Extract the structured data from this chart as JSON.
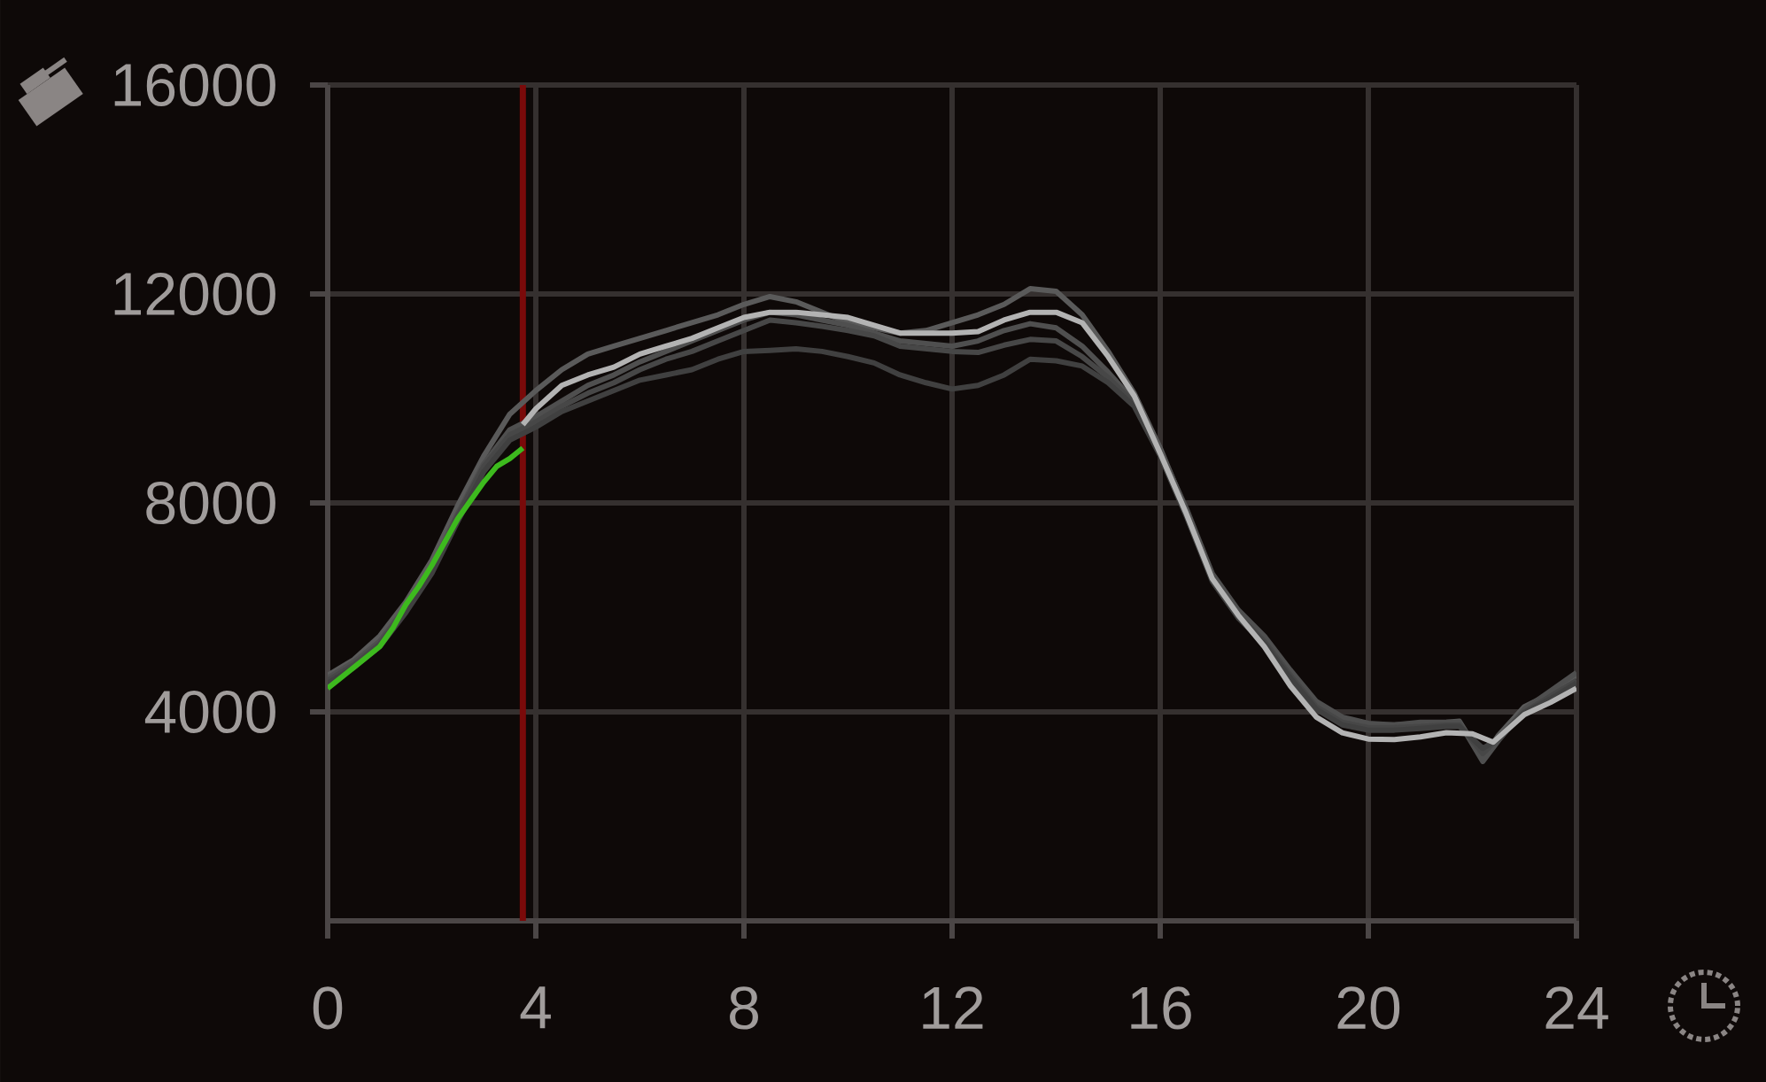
{
  "chart_data": {
    "type": "line",
    "x": [
      0,
      0.5,
      1,
      1.5,
      2,
      2.5,
      3,
      3.5,
      4,
      4.5,
      5,
      5.5,
      6,
      6.5,
      7,
      7.5,
      8,
      8.5,
      9,
      9.5,
      10,
      10.5,
      11,
      11.5,
      12,
      12.5,
      13,
      13.5,
      14,
      14.5,
      15,
      15.5,
      16,
      16.5,
      17,
      17.5,
      18,
      18.5,
      19,
      19.5,
      20,
      20.5,
      21,
      21.5,
      21.75,
      22.2,
      22.5,
      23,
      23.5,
      24
    ],
    "xlim": [
      0,
      24
    ],
    "xticks": [
      0,
      4,
      8,
      12,
      16,
      20,
      24
    ],
    "ylim": [
      0,
      16000
    ],
    "yticks": [
      4000,
      8000,
      12000,
      16000
    ],
    "grid": true,
    "series": [
      {
        "color": "#5a5a5a",
        "values": [
          4700,
          5000,
          5450,
          6100,
          6900,
          7950,
          8900,
          9700,
          10150,
          10550,
          10850,
          11000,
          11150,
          11300,
          11450,
          11600,
          11800,
          11950,
          11850,
          11650,
          11450,
          11350,
          11250,
          11300,
          11450,
          11600,
          11800,
          12100,
          12050,
          11600,
          10900,
          10100,
          9050,
          7850,
          6600,
          5900,
          5400,
          4750,
          4150,
          3850,
          3750,
          3750,
          3780,
          3800,
          3820,
          3100,
          3550,
          4100,
          4350,
          4700
        ]
      },
      {
        "color": "#4f4f4f",
        "values": [
          4650,
          4950,
          5350,
          6000,
          6750,
          7800,
          8750,
          9400,
          9650,
          9950,
          10250,
          10450,
          10700,
          10900,
          11100,
          11300,
          11500,
          11650,
          11600,
          11500,
          11400,
          11250,
          11100,
          11050,
          11000,
          11100,
          11300,
          11430,
          11350,
          11000,
          10500,
          9950,
          9000,
          7900,
          6650,
          5950,
          5450,
          4800,
          4200,
          3900,
          3780,
          3750,
          3800,
          3800,
          3800,
          3050,
          3450,
          4050,
          4400,
          4750
        ]
      },
      {
        "color": "#474747",
        "values": [
          4600,
          4900,
          5300,
          5950,
          6700,
          7750,
          8700,
          9300,
          9550,
          9850,
          10100,
          10300,
          10550,
          10750,
          10900,
          11100,
          11300,
          11500,
          11450,
          11380,
          11300,
          11200,
          11000,
          10950,
          10900,
          10880,
          11020,
          11130,
          11100,
          10800,
          10400,
          9900,
          8950,
          7800,
          6550,
          5850,
          5350,
          4700,
          4100,
          3800,
          3700,
          3700,
          3720,
          3750,
          3750,
          3200,
          3500,
          4000,
          4300,
          4600
        ]
      },
      {
        "color": "#404040",
        "values": [
          4550,
          4850,
          5250,
          5900,
          6650,
          7650,
          8600,
          9200,
          9450,
          9750,
          9950,
          10150,
          10350,
          10450,
          10550,
          10750,
          10900,
          10920,
          10950,
          10900,
          10800,
          10680,
          10450,
          10300,
          10180,
          10250,
          10450,
          10750,
          10720,
          10620,
          10300,
          9850,
          8900,
          7750,
          6500,
          5800,
          5300,
          4650,
          4050,
          3750,
          3650,
          3650,
          3680,
          3720,
          3720,
          3300,
          3480,
          3980,
          4250,
          4550
        ]
      },
      {
        "color": "#b3b3b3",
        "x": [
          3.75,
          4,
          4.5,
          5,
          5.5,
          6,
          6.5,
          7,
          7.5,
          8,
          8.5,
          9,
          9.5,
          10,
          10.5,
          11,
          11.5,
          12,
          12.5,
          13,
          13.5,
          14,
          14.5,
          15,
          15.5,
          16,
          16.5,
          17,
          17.5,
          18,
          18.5,
          19,
          19.5,
          20,
          20.5,
          21,
          21.5,
          22,
          22.4,
          23,
          23.5,
          24
        ],
        "values": [
          9500,
          9800,
          10250,
          10450,
          10600,
          10850,
          11000,
          11150,
          11350,
          11550,
          11650,
          11650,
          11600,
          11550,
          11400,
          11250,
          11250,
          11250,
          11280,
          11500,
          11650,
          11650,
          11450,
          10800,
          10050,
          8950,
          7800,
          6550,
          5850,
          5250,
          4500,
          3900,
          3600,
          3480,
          3470,
          3520,
          3600,
          3580,
          3420,
          3950,
          4180,
          4450
        ]
      },
      {
        "color": "#3dba1e",
        "x": [
          0,
          0.25,
          0.5,
          0.75,
          1,
          1.25,
          1.5,
          1.75,
          2,
          2.25,
          2.5,
          2.75,
          3,
          3.25,
          3.5,
          3.75
        ],
        "values": [
          4450,
          4650,
          4850,
          5050,
          5250,
          5600,
          6050,
          6400,
          6800,
          7250,
          7700,
          8050,
          8400,
          8700,
          8850,
          9050
        ]
      }
    ],
    "ref_lines": [
      {
        "axis": "x",
        "value": 3.75,
        "color": "#7a0a0a"
      }
    ]
  }
}
